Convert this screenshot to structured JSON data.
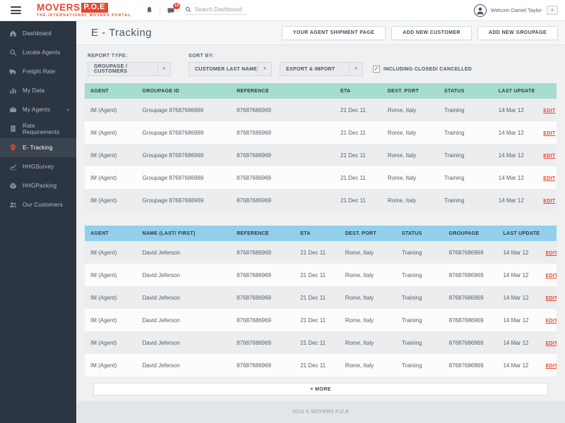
{
  "brand": {
    "name": "MOVERS",
    "suffix": "P.O.E",
    "tagline": "THE INTERNATIONAL MOVERS PORTAL"
  },
  "topbar": {
    "search_placeholder": "Search Dashboard",
    "notifications_badge": "13",
    "user_name": "Welcom Daniel Taylor"
  },
  "sidebar": {
    "items": [
      {
        "label": "Dashboard",
        "icon": "home-icon"
      },
      {
        "label": "Locate Agents",
        "icon": "search-icon"
      },
      {
        "label": "Freight Rate",
        "icon": "truck-icon"
      },
      {
        "label": "My Data",
        "icon": "bar-chart-icon"
      },
      {
        "label": "My Agents",
        "icon": "briefcase-icon",
        "suffix": "+"
      },
      {
        "label": "Rate Requirements",
        "icon": "document-icon"
      },
      {
        "label": "E- Tracking",
        "icon": "map-pin-icon",
        "active": true
      },
      {
        "label": "HHGSurvey",
        "icon": "line-chart-icon"
      },
      {
        "label": "HHGPacking",
        "icon": "package-icon"
      },
      {
        "label": "Our Customers",
        "icon": "users-icon"
      }
    ]
  },
  "page": {
    "title": "E - Tracking",
    "actions": [
      "YOUR AGENT SHIPMENT PAGE",
      "ADD NEW CUSTOMER",
      "ADD NEW GROUPAGE"
    ]
  },
  "filters": {
    "report_type": {
      "label": "REPORT TYPE:",
      "value": "GROUPAGE / CUSTOMERS"
    },
    "sort_by": {
      "label": "SORT BY:",
      "value1": "CUSTOMER LAST NAME",
      "value2": "EXPORT & IMPORT"
    },
    "include_closed": {
      "label": "INCLUDING CLOSED/ CANCELLED",
      "checked": true
    }
  },
  "groupage_table": {
    "headers": [
      "AGENT",
      "GROUPAGE ID",
      "REFERENCE",
      "ETA",
      "DEST. PORT",
      "STATUS",
      "LAST UPDATE"
    ],
    "edit_label": "EDIT",
    "rows": [
      [
        "IM (Agent)",
        "Groupage 87687686969",
        "87687686969",
        "21 Dec 11",
        "Rome, Italy",
        "Training",
        "14 Mar 12"
      ],
      [
        "IM (Agent)",
        "Groupage 87687686969",
        "87687686969",
        "21 Dec 11",
        "Rome, Italy",
        "Training",
        "14 Mar 12"
      ],
      [
        "IM (Agent)",
        "Groupage 87687686969",
        "87687686969",
        "21 Dec 11",
        "Rome, Italy",
        "Training",
        "14 Mar 12"
      ],
      [
        "IM (Agent)",
        "Groupage 87687686969",
        "87687686969",
        "21 Dec 11",
        "Rome, Italy",
        "Training",
        "14 Mar 12"
      ],
      [
        "IM (Agent)",
        "Groupage 87687686969",
        "87687686969",
        "21 Dec 11",
        "Rome, Italy",
        "Training",
        "14 Mar 12"
      ]
    ]
  },
  "customers_table": {
    "headers": [
      "AGENT",
      "NAME (LAST/ FIRST)",
      "REFERENCE",
      "ETA",
      "DEST. PORT",
      "STATUS",
      "GROUPAGE",
      "LAST UPDATE"
    ],
    "edit_label": "EDIT",
    "rows": [
      [
        "IM (Agent)",
        "David Jeferson",
        "87687686969",
        "21 Dec 11",
        "Rome, Italy",
        "Training",
        "87687686969",
        "14 Mar 12"
      ],
      [
        "IM (Agent)",
        "David Jeferson",
        "87687686969",
        "21 Dec 11",
        "Rome, Italy",
        "Training",
        "87687686969",
        "14 Mar 12"
      ],
      [
        "IM (Agent)",
        "David Jeferson",
        "87687686969",
        "21 Dec 11",
        "Rome, Italy",
        "Training",
        "87687686969",
        "14 Mar 12"
      ],
      [
        "IM (Agent)",
        "David Jeferson",
        "87687686969",
        "21 Dec 11",
        "Rome, Italy",
        "Training",
        "87687686969",
        "14 Mar 12"
      ],
      [
        "IM (Agent)",
        "David Jeferson",
        "87687686969",
        "21 Dec 11",
        "Rome, Italy",
        "Training",
        "87687686969",
        "14 Mar 12"
      ],
      [
        "IM (Agent)",
        "David Jeferson",
        "87687686969",
        "21 Dec 11",
        "Rome, Italy",
        "Training",
        "87687686969",
        "14 Mar 12"
      ]
    ]
  },
  "more": {
    "label": "+ MORE"
  },
  "footer": {
    "text": "2013 © MOVERS P.O.E"
  },
  "colors": {
    "accent": "#e8462f",
    "sidebar_bg": "#2c3542",
    "table_green_header": "#a7dcd1",
    "table_blue_header": "#92cfec"
  }
}
